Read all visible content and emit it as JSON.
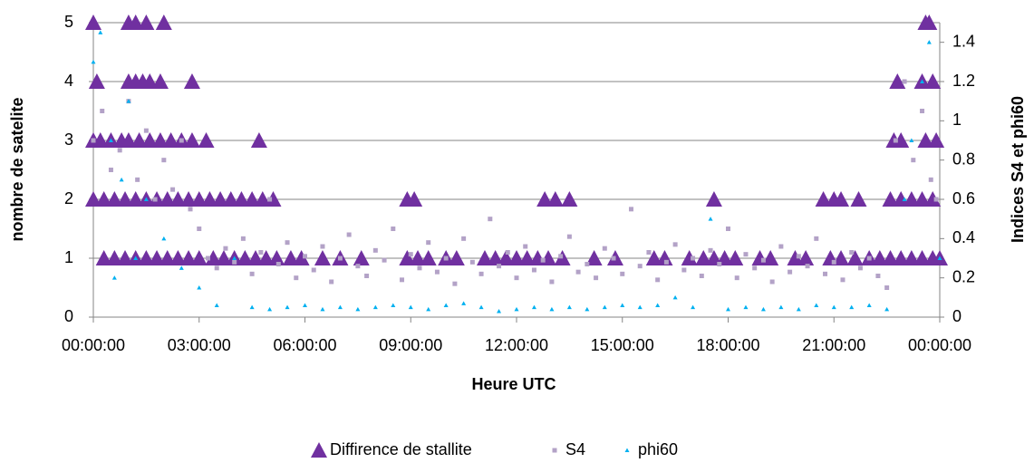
{
  "chart_data": {
    "type": "scatter",
    "xlabel": "Heure UTC",
    "ylabel": "nombre de  satelite",
    "y2label": "Indices S4 et phi60",
    "xlim": [
      0,
      24
    ],
    "xticks": [
      {
        "value": 0,
        "label": "00:00:00"
      },
      {
        "value": 3,
        "label": "03:00:00"
      },
      {
        "value": 6,
        "label": "06:00:00"
      },
      {
        "value": 9,
        "label": "09:00:00"
      },
      {
        "value": 12,
        "label": "12:00:00"
      },
      {
        "value": 15,
        "label": "15:00:00"
      },
      {
        "value": 18,
        "label": "18:00:00"
      },
      {
        "value": 21,
        "label": "21:00:00"
      },
      {
        "value": 24,
        "label": "00:00:00"
      }
    ],
    "ylim": [
      0,
      5
    ],
    "yticks": [
      0,
      1,
      2,
      3,
      4,
      5
    ],
    "y2lim": [
      0,
      1.5
    ],
    "y2ticks": [
      0,
      0.2,
      0.4,
      0.6,
      0.8,
      1,
      1.2,
      1.4
    ],
    "grid": true,
    "legend": "bottom",
    "series": [
      {
        "name": "Diffirence de stallite",
        "color": "#7030a0",
        "marker": "triangle",
        "x": [
          0.0,
          1.0,
          1.2,
          1.5,
          2.0,
          23.6,
          23.7,
          0.1,
          1.0,
          1.2,
          1.4,
          1.6,
          1.9,
          2.8,
          22.8,
          23.5,
          23.8,
          0.0,
          0.2,
          0.5,
          0.8,
          1.0,
          1.3,
          1.6,
          1.9,
          2.2,
          2.5,
          2.8,
          3.2,
          4.7,
          22.7,
          22.9,
          23.6,
          23.9,
          0.0,
          0.3,
          0.6,
          0.9,
          1.2,
          1.5,
          1.8,
          2.1,
          2.4,
          2.7,
          3.0,
          3.3,
          3.6,
          3.9,
          4.2,
          4.5,
          4.8,
          5.1,
          8.9,
          9.1,
          12.8,
          13.1,
          13.5,
          17.6,
          20.7,
          21.0,
          21.2,
          21.7,
          22.6,
          22.9,
          23.2,
          23.5,
          23.8,
          0.3,
          0.6,
          0.9,
          1.2,
          1.5,
          1.8,
          2.1,
          2.4,
          2.7,
          3.0,
          3.4,
          3.7,
          4.0,
          4.3,
          4.6,
          4.9,
          5.2,
          5.6,
          5.9,
          6.5,
          7.0,
          7.6,
          8.9,
          9.2,
          9.5,
          10.0,
          10.3,
          11.1,
          11.4,
          11.7,
          12.0,
          12.3,
          12.6,
          12.9,
          13.3,
          14.2,
          14.8,
          15.9,
          16.2,
          16.9,
          17.3,
          17.6,
          17.9,
          18.2,
          18.9,
          19.2,
          19.9,
          20.2,
          20.9,
          21.2,
          21.6,
          22.0,
          22.3,
          22.6,
          22.9,
          23.2,
          23.5,
          23.8,
          24.0
        ],
        "values": [
          5,
          5,
          5,
          5,
          5,
          5,
          5,
          4,
          4,
          4,
          4,
          4,
          4,
          4,
          4,
          4,
          4,
          3,
          3,
          3,
          3,
          3,
          3,
          3,
          3,
          3,
          3,
          3,
          3,
          3,
          3,
          3,
          3,
          3,
          2,
          2,
          2,
          2,
          2,
          2,
          2,
          2,
          2,
          2,
          2,
          2,
          2,
          2,
          2,
          2,
          2,
          2,
          2,
          2,
          2,
          2,
          2,
          2,
          2,
          2,
          2,
          2,
          2,
          2,
          2,
          2,
          2,
          1,
          1,
          1,
          1,
          1,
          1,
          1,
          1,
          1,
          1,
          1,
          1,
          1,
          1,
          1,
          1,
          1,
          1,
          1,
          1,
          1,
          1,
          1,
          1,
          1,
          1,
          1,
          1,
          1,
          1,
          1,
          1,
          1,
          1,
          1,
          1,
          1,
          1,
          1,
          1,
          1,
          1,
          1,
          1,
          1,
          1,
          1,
          1,
          1,
          1,
          1,
          1,
          1,
          1,
          1,
          1,
          1,
          1,
          1
        ]
      },
      {
        "name": "S4",
        "color": "#b3a2c7",
        "marker": "square",
        "axis": "y2",
        "x": [
          0,
          0.25,
          0.5,
          0.75,
          1,
          1.25,
          1.5,
          1.75,
          2,
          2.25,
          2.5,
          2.75,
          3,
          3.25,
          3.5,
          3.75,
          4,
          4.25,
          4.5,
          4.75,
          5,
          5.25,
          5.5,
          5.75,
          6,
          6.25,
          6.5,
          6.75,
          7,
          7.25,
          7.5,
          7.75,
          8,
          8.25,
          8.5,
          8.75,
          9,
          9.25,
          9.5,
          9.75,
          10,
          10.25,
          10.5,
          10.75,
          11,
          11.25,
          11.5,
          11.75,
          12,
          12.25,
          12.5,
          12.75,
          13,
          13.25,
          13.5,
          13.75,
          14,
          14.25,
          14.5,
          14.75,
          15,
          15.25,
          15.5,
          15.75,
          16,
          16.25,
          16.5,
          16.75,
          17,
          17.25,
          17.5,
          17.75,
          18,
          18.25,
          18.5,
          18.75,
          19,
          19.25,
          19.5,
          19.75,
          20,
          20.25,
          20.5,
          20.75,
          21,
          21.25,
          21.5,
          21.75,
          22,
          22.25,
          22.5,
          22.75,
          23,
          23.25,
          23.5,
          23.75,
          23.9
        ],
        "values": [
          0.9,
          1.05,
          0.75,
          0.85,
          1.1,
          0.7,
          0.95,
          0.6,
          0.8,
          0.65,
          0.9,
          0.55,
          0.45,
          0.3,
          0.25,
          0.35,
          0.28,
          0.4,
          0.22,
          0.33,
          0.6,
          0.27,
          0.38,
          0.2,
          0.31,
          0.24,
          0.36,
          0.18,
          0.3,
          0.42,
          0.26,
          0.21,
          0.34,
          0.29,
          0.45,
          0.19,
          0.32,
          0.25,
          0.38,
          0.23,
          0.3,
          0.17,
          0.4,
          0.28,
          0.22,
          0.5,
          0.26,
          0.33,
          0.2,
          0.36,
          0.24,
          0.29,
          0.18,
          0.31,
          0.41,
          0.23,
          0.27,
          0.2,
          0.35,
          0.3,
          0.22,
          0.55,
          0.26,
          0.33,
          0.19,
          0.28,
          0.37,
          0.24,
          0.3,
          0.21,
          0.34,
          0.27,
          0.45,
          0.2,
          0.32,
          0.25,
          0.29,
          0.18,
          0.36,
          0.23,
          0.31,
          0.26,
          0.4,
          0.22,
          0.28,
          0.19,
          0.33,
          0.25,
          0.3,
          0.21,
          0.15,
          0.9,
          1.2,
          0.8,
          1.05,
          0.7,
          0.6
        ]
      },
      {
        "name": "phi60",
        "color": "#00b0f0",
        "marker": "small-triangle",
        "axis": "y2",
        "x": [
          0,
          0.5,
          1,
          1.5,
          2,
          2.5,
          3,
          3.5,
          4,
          4.5,
          5,
          5.5,
          6,
          6.5,
          7,
          7.5,
          8,
          8.5,
          9,
          9.5,
          10,
          10.5,
          11,
          11.5,
          12,
          12.5,
          13,
          13.5,
          14,
          14.5,
          15,
          15.5,
          16,
          16.5,
          17,
          17.5,
          18,
          18.5,
          19,
          19.5,
          20,
          20.5,
          21,
          21.5,
          22,
          22.5,
          23,
          23.5,
          24,
          0.2,
          0.8,
          1.2,
          23.7,
          23.2,
          0.6
        ],
        "values": [
          1.3,
          0.9,
          1.1,
          0.6,
          0.4,
          0.25,
          0.15,
          0.06,
          0.3,
          0.05,
          0.04,
          0.05,
          0.06,
          0.04,
          0.05,
          0.04,
          0.05,
          0.06,
          0.05,
          0.04,
          0.06,
          0.07,
          0.05,
          0.03,
          0.04,
          0.05,
          0.04,
          0.05,
          0.04,
          0.05,
          0.06,
          0.05,
          0.06,
          0.1,
          0.05,
          0.5,
          0.04,
          0.05,
          0.04,
          0.05,
          0.04,
          0.06,
          0.05,
          0.05,
          0.06,
          0.04,
          0.6,
          1.2,
          0.3,
          1.45,
          0.7,
          0.3,
          1.4,
          0.9,
          0.2
        ]
      }
    ]
  }
}
